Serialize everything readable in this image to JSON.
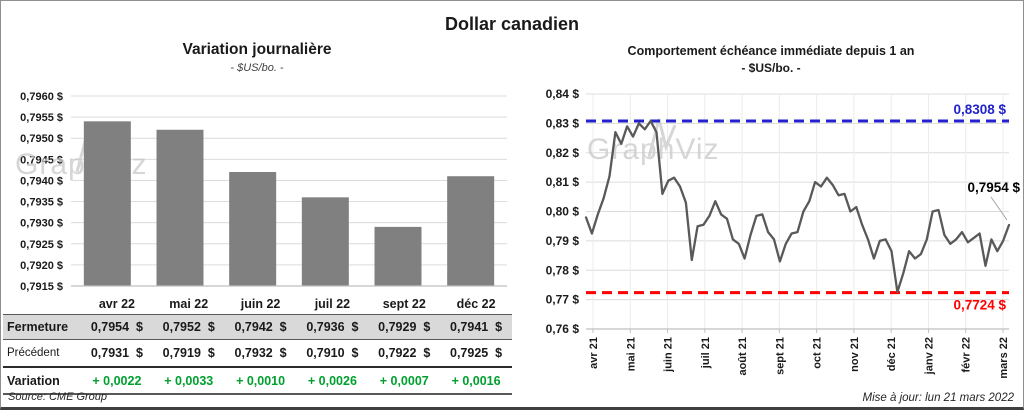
{
  "header": {
    "title": "Dollar canadien"
  },
  "footer": {
    "source": "Source: CME Group",
    "updated": "Mise à jour: lun 21 mars 2022"
  },
  "watermark": "GraphViz",
  "colors": {
    "accent_blue": "#2222cc",
    "accent_red": "#ff0000",
    "positive_green": "#00a02e",
    "bar_gray": "#808080",
    "line_gray": "#595959",
    "fermeture_row_bg": "#d9d9d9",
    "gridline": "#dcdcdc",
    "axis": "#bfbfbf",
    "watermark_gray": "#c9c9c9"
  },
  "table": {
    "columns": [
      "avr 22",
      "mai 22",
      "juin 22",
      "juil 22",
      "sept 22",
      "déc 22"
    ],
    "rows": [
      {
        "label": "Fermeture",
        "style": "fermeture",
        "values": [
          "0,7954  $",
          "0,7952  $",
          "0,7942  $",
          "0,7936  $",
          "0,7929  $",
          "0,7941  $"
        ]
      },
      {
        "label": "Précédent",
        "style": "precedent",
        "values": [
          "0,7931  $",
          "0,7919  $",
          "0,7932  $",
          "0,7910  $",
          "0,7922  $",
          "0,7925  $"
        ]
      },
      {
        "label": "Variation",
        "style": "variation",
        "values": [
          "+ 0,0022",
          "+ 0,0033",
          "+ 0,0010",
          "+ 0,0026",
          "+ 0,0007",
          "+ 0,0016"
        ]
      }
    ]
  },
  "chart_data": [
    {
      "type": "bar",
      "title": "Variation  journalière",
      "subtitle": "- $US/bo. -",
      "categories": [
        "avr 22",
        "mai 22",
        "juin 22",
        "juil 22",
        "sept 22",
        "déc 22"
      ],
      "values": [
        0.7954,
        0.7952,
        0.7942,
        0.7936,
        0.7929,
        0.7941
      ],
      "ylim": [
        0.7915,
        0.796
      ],
      "yticks": [
        [
          0.796,
          "0,7960 $"
        ],
        [
          0.7955,
          "0,7955 $"
        ],
        [
          0.795,
          "0,7950 $"
        ],
        [
          0.7945,
          "0,7945 $"
        ],
        [
          0.794,
          "0,7940 $"
        ],
        [
          0.7935,
          "0,7935 $"
        ],
        [
          0.793,
          "0,7930 $"
        ],
        [
          0.7925,
          "0,7925 $"
        ],
        [
          0.792,
          "0,7920 $"
        ],
        [
          0.7915,
          "0,7915 $"
        ]
      ],
      "grid": true,
      "bar_color": "#808080"
    },
    {
      "type": "line",
      "title": "Comportement échéance immédiate depuis 1 an",
      "subtitle": "- $US/bo. -",
      "x_labels": [
        "avr 21",
        "mai 21",
        "juin 21",
        "juil 21",
        "août 21",
        "sept 21",
        "oct 21",
        "nov 21",
        "déc 21",
        "janv 22",
        "févr 22",
        "mars 22"
      ],
      "ylim": [
        0.76,
        0.84
      ],
      "yticks": [
        [
          0.84,
          "0,84 $"
        ],
        [
          0.83,
          "0,83 $"
        ],
        [
          0.82,
          "0,82 $"
        ],
        [
          0.81,
          "0,81 $"
        ],
        [
          0.8,
          "0,80 $"
        ],
        [
          0.79,
          "0,79 $"
        ],
        [
          0.78,
          "0,78 $"
        ],
        [
          0.77,
          "0,77 $"
        ],
        [
          0.76,
          "0,76 $"
        ]
      ],
      "grid": true,
      "line_color": "#595959",
      "values": [
        0.798,
        0.7925,
        0.799,
        0.8045,
        0.812,
        0.827,
        0.823,
        0.829,
        0.8255,
        0.83,
        0.828,
        0.8308,
        0.827,
        0.806,
        0.8105,
        0.8115,
        0.8085,
        0.803,
        0.7835,
        0.795,
        0.7955,
        0.7985,
        0.8035,
        0.799,
        0.7975,
        0.7905,
        0.789,
        0.784,
        0.792,
        0.7985,
        0.799,
        0.793,
        0.7905,
        0.783,
        0.789,
        0.7925,
        0.793,
        0.8,
        0.8035,
        0.81,
        0.8085,
        0.8115,
        0.809,
        0.8055,
        0.806,
        0.8,
        0.8015,
        0.7955,
        0.7905,
        0.784,
        0.79,
        0.7905,
        0.7865,
        0.7726,
        0.779,
        0.7865,
        0.784,
        0.7855,
        0.7905,
        0.8,
        0.8005,
        0.792,
        0.789,
        0.7905,
        0.793,
        0.7895,
        0.791,
        0.7925,
        0.7815,
        0.7905,
        0.7865,
        0.79,
        0.7954
      ],
      "ref_lines": [
        {
          "value": 0.8308,
          "label": "0,8308 $",
          "color": "#2222cc",
          "label_pos": "above"
        },
        {
          "value": 0.7724,
          "label": "0,7724 $",
          "color": "#ff0000",
          "label_pos": "below"
        }
      ],
      "end_label": {
        "value": 0.7954,
        "label": "0,7954 $"
      }
    }
  ]
}
